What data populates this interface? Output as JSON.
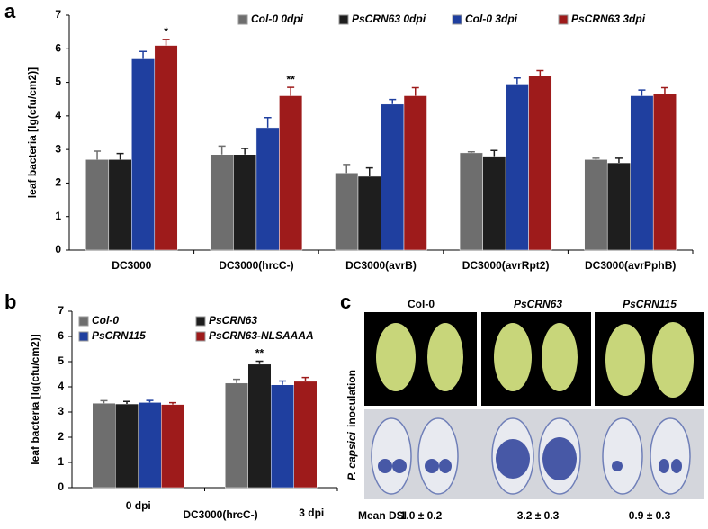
{
  "chart_data": [
    {
      "type": "bar",
      "panel": "a",
      "ylabel": "leaf bacteria [lg(cfu/cm2)]",
      "categories": [
        "DC3000",
        "DC3000(hrcC-)",
        "DC3000(avrB)",
        "DC3000(avrRpt2)",
        "DC3000(avrPphB)"
      ],
      "series": [
        {
          "name": "Col-0 0dpi",
          "color": "#6e6e6e",
          "values": [
            2.7,
            2.85,
            2.3,
            2.9,
            2.7
          ],
          "errors": [
            0.25,
            0.25,
            0.25,
            0.03,
            0.04
          ]
        },
        {
          "name": "PsCRN63 0dpi",
          "color": "#1e1e1e",
          "values": [
            2.7,
            2.85,
            2.2,
            2.8,
            2.6
          ],
          "errors": [
            0.18,
            0.18,
            0.25,
            0.17,
            0.14
          ]
        },
        {
          "name": "Col-0 3dpi",
          "color": "#1f3f9f",
          "values": [
            5.7,
            3.65,
            4.35,
            4.95,
            4.6
          ],
          "errors": [
            0.22,
            0.3,
            0.14,
            0.18,
            0.17
          ]
        },
        {
          "name": "PsCRN63 3dpi",
          "color": "#9e1b1b",
          "values": [
            6.1,
            4.6,
            4.6,
            5.2,
            4.65
          ],
          "errors": [
            0.18,
            0.25,
            0.24,
            0.15,
            0.19
          ]
        }
      ],
      "annotations": [
        "*",
        "**"
      ],
      "ylim": [
        0,
        7
      ],
      "yticks": [
        0,
        1,
        2,
        3,
        4,
        5,
        6,
        7
      ]
    },
    {
      "type": "bar",
      "panel": "b",
      "ylabel": "leaf bacteria [lg(cfu/cm2)]",
      "xlabel": "DC3000(hrcC-)",
      "categories": [
        "0 dpi",
        "3 dpi"
      ],
      "series": [
        {
          "name": "Col-0",
          "color": "#6e6e6e",
          "values": [
            3.35,
            4.15
          ],
          "errors": [
            0.1,
            0.15
          ]
        },
        {
          "name": "PsCRN63",
          "color": "#1e1e1e",
          "values": [
            3.32,
            4.9
          ],
          "errors": [
            0.1,
            0.12
          ]
        },
        {
          "name": "PsCRN115",
          "color": "#1f3f9f",
          "values": [
            3.38,
            4.08
          ],
          "errors": [
            0.08,
            0.15
          ]
        },
        {
          "name": "PsCRN63-NLSAAAA",
          "color": "#9e1b1b",
          "values": [
            3.3,
            4.22
          ],
          "errors": [
            0.07,
            0.15
          ]
        }
      ],
      "annotations": [
        "**"
      ],
      "ylim": [
        0,
        7
      ],
      "yticks": [
        0,
        1,
        2,
        3,
        4,
        5,
        6,
        7
      ]
    }
  ],
  "panel_c": {
    "label": "c",
    "columns": [
      "Col-0",
      "PsCRN63",
      "PsCRN115"
    ],
    "row_label_species": "P. capsici",
    "row_label_rest": "inoculation",
    "dsi_label": "Mean DSI",
    "dsi": [
      "1.0 ± 0.2",
      "3.2 ± 0.3",
      "0.9 ± 0.3"
    ]
  }
}
